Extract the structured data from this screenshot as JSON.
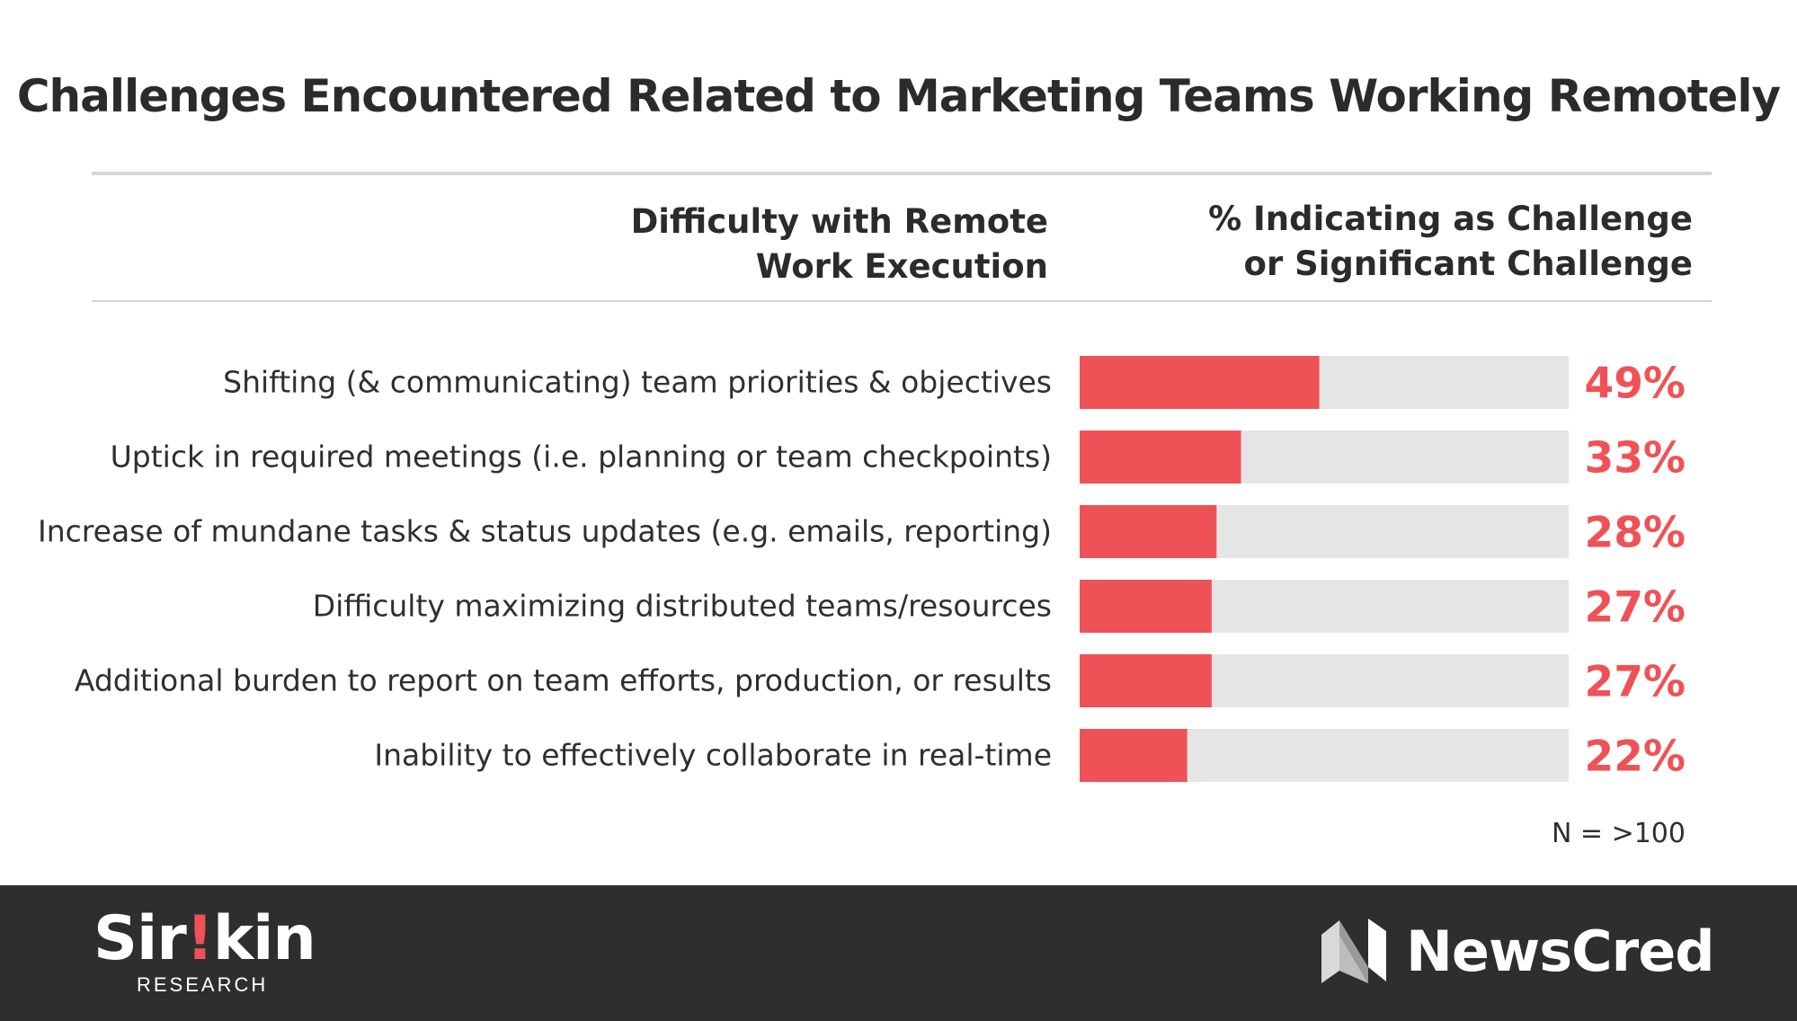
{
  "chart_data": {
    "type": "bar",
    "orientation": "horizontal",
    "title": "Challenges Encountered Related to Marketing Teams Working Remotely",
    "category_header": [
      "Difficulty with Remote",
      "Work Execution"
    ],
    "value_header": [
      "% Indicating as Challenge",
      "or Significant Challenge"
    ],
    "categories": [
      "Shifting (& communicating) team priorities & objectives",
      "Uptick in required meetings (i.e. planning or team checkpoints)",
      "Increase of mundane tasks & status updates (e.g. emails, reporting)",
      "Difficulty maximizing distributed teams/resources",
      "Additional burden to report on team efforts, production, or results",
      "Inability to effectively collaborate in real-time"
    ],
    "values": [
      49,
      33,
      28,
      27,
      27,
      22
    ],
    "value_labels": [
      "49%",
      "33%",
      "28%",
      "27%",
      "27%",
      "22%"
    ],
    "xlim": [
      0,
      100
    ],
    "note": "N = >100",
    "colors": {
      "bar": "#ef5256",
      "track": "#e5e5e5",
      "value_text": "#ef5256"
    }
  },
  "footer": {
    "left_logo": {
      "pre": "Sir",
      "mark": "!",
      "post": "kin",
      "sub": "RESEARCH"
    },
    "right_logo": {
      "wordmark": "NewsCred"
    },
    "background": "#2e2e2e"
  }
}
